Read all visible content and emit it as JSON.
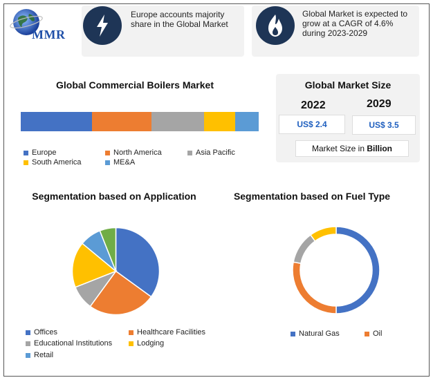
{
  "logo": {
    "text": "MMR"
  },
  "info_cards": [
    {
      "icon": "lightning-icon",
      "text": "Europe accounts majority share in the Global Market"
    },
    {
      "icon": "flame-icon",
      "text": "Global Market is expected to grow at a CAGR of 4.6% during 2023-2029"
    }
  ],
  "market_bar": {
    "title": "Global Commercial Boilers Market",
    "legend": [
      "Europe",
      "North America",
      "Asia Pacific",
      "South America",
      "ME&A"
    ]
  },
  "market_size": {
    "title": "Global Market Size",
    "year1": "2022",
    "year2": "2029",
    "value1": "US$ 2.4",
    "value2": "US$ 3.5",
    "unit_prefix": "Market Size in ",
    "unit_bold": "Billion"
  },
  "colors": {
    "blue": "#4472c4",
    "orange": "#ed7d31",
    "gray": "#a5a5a5",
    "yellow": "#ffc000",
    "lightblue": "#5b9bd5",
    "green": "#70ad47",
    "navy": "#1e3556"
  },
  "chart_data": [
    {
      "type": "bar",
      "title": "Global Commercial Boilers Market",
      "stacked": true,
      "orientation": "horizontal",
      "series": [
        {
          "name": "Europe",
          "values": [
            30
          ]
        },
        {
          "name": "North America",
          "values": [
            25
          ]
        },
        {
          "name": "Asia Pacific",
          "values": [
            22
          ]
        },
        {
          "name": "South America",
          "values": [
            13
          ]
        },
        {
          "name": "ME&A",
          "values": [
            10
          ]
        }
      ]
    },
    {
      "type": "pie",
      "title": "Segmentation based on Application",
      "labels": [
        "Offices",
        "Healthcare Facilities",
        "Educational Institutions",
        "Lodging",
        "Retail",
        ""
      ],
      "values": [
        35,
        25,
        9,
        17,
        8,
        6
      ]
    },
    {
      "type": "pie",
      "donut": true,
      "title": "Segmentation based on Fuel Type",
      "labels": [
        "Natural Gas",
        "Oil",
        "",
        ""
      ],
      "values": [
        50,
        28,
        12,
        10
      ]
    }
  ]
}
